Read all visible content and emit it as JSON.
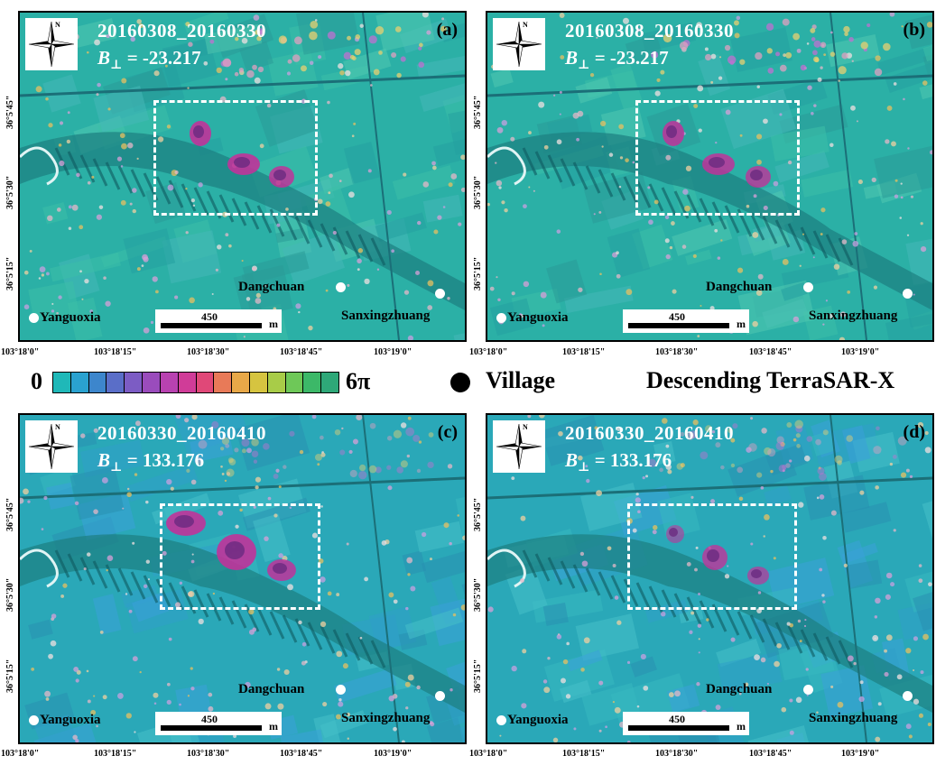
{
  "panels": [
    {
      "id": "a",
      "label": "(a)",
      "date": "20160308_20160330",
      "bperp_symbol": "B",
      "bperp_sub": "⊥",
      "bperp_value": "= -23.217"
    },
    {
      "id": "b",
      "label": "(b)",
      "date": "20160308_20160330",
      "bperp_symbol": "B",
      "bperp_sub": "⊥",
      "bperp_value": "= -23.217"
    },
    {
      "id": "c",
      "label": "(c)",
      "date": "20160330_20160410",
      "bperp_symbol": "B",
      "bperp_sub": "⊥",
      "bperp_value": "= 133.176"
    },
    {
      "id": "d",
      "label": "(d)",
      "date": "20160330_20160410",
      "bperp_symbol": "B",
      "bperp_sub": "⊥",
      "bperp_value": "= 133.176"
    }
  ],
  "villages": {
    "yanguoxia": "Yanguoxia",
    "dangchuan": "Dangchuan",
    "sanxingzhuang": "Sanxingzhuang"
  },
  "north_label": "N",
  "scale": {
    "value": "450",
    "unit": "m"
  },
  "lon_ticks": [
    "103°18'0\"",
    "103°18'15\"",
    "103°18'30\"",
    "103°18'45\"",
    "103°19'0\""
  ],
  "lat_ticks": [
    "36°5'45\"",
    "36°5'30\"",
    "36°5'15\""
  ],
  "legend": {
    "min": "0",
    "max": "6π",
    "colors": [
      "#1fb8b8",
      "#2aa2d0",
      "#3d86cc",
      "#5a6ec8",
      "#7c5cc4",
      "#9a4cbc",
      "#b842b0",
      "#d03c98",
      "#e04878",
      "#e87a58",
      "#e8a848",
      "#d6c440",
      "#a8cc48",
      "#6ec858",
      "#3cb868",
      "#2ea878"
    ],
    "village_label": "Village",
    "sensor_label": "Descending TerraSAR-X"
  },
  "colors": {
    "terrain": "#2bb0a6",
    "terrain_dark": "#1d7f80",
    "terrain_light": "#5cd0c0",
    "fringe": "#c0339a"
  }
}
